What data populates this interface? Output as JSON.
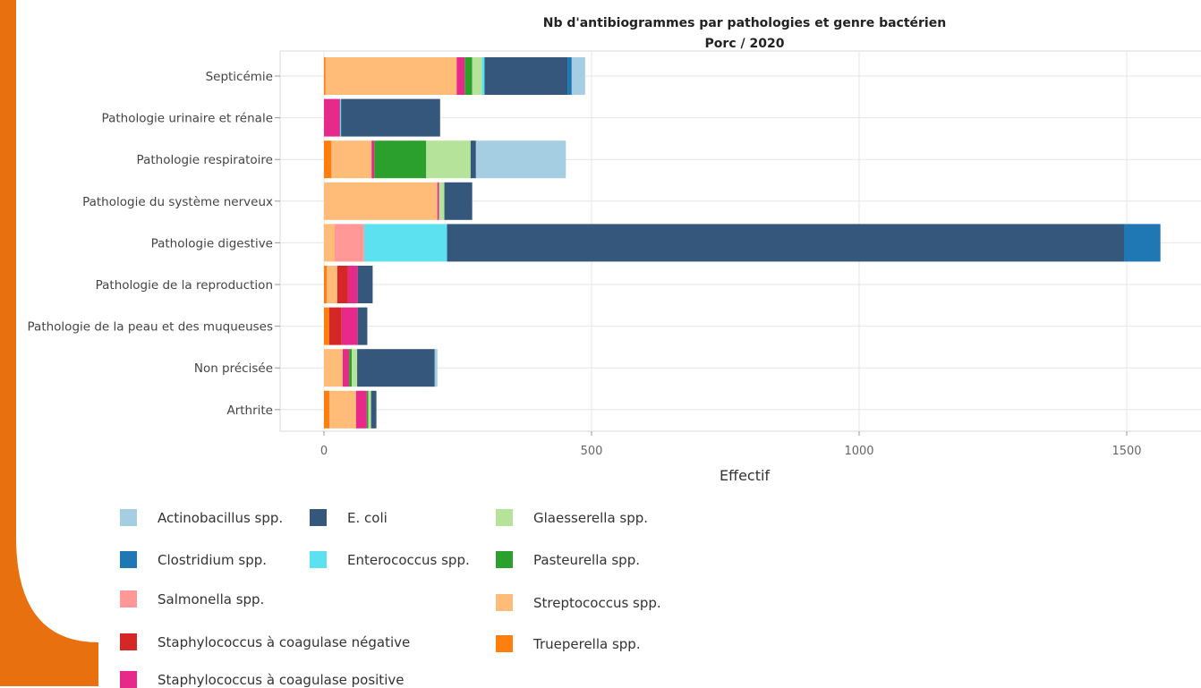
{
  "chart_data": {
    "type": "bar",
    "orientation": "horizontal",
    "stacked": true,
    "title": "Nb d'antibiogrammes par pathologies et genre bactérien",
    "subtitle": "Porc / 2020",
    "xlabel": "Effectif",
    "ylabel": "",
    "xlim": [
      -80,
      1640
    ],
    "xticks": [
      0,
      500,
      1000,
      1500
    ],
    "xtick_labels": [
      "0",
      "500",
      "1000",
      "1500"
    ],
    "grid": true,
    "legend_position": "bottom",
    "categories": [
      "Septicémie",
      "Pathologie urinaire et rénale",
      "Pathologie respiratoire",
      "Pathologie du système nerveux",
      "Pathologie digestive",
      "Pathologie de la reproduction",
      "Pathologie de la peau et des muqueuses",
      "Non précisée",
      "Arthrite"
    ],
    "series": [
      {
        "name": "Trueperella spp.",
        "color": "#ff7f0e",
        "values": [
          3,
          0,
          14,
          0,
          0,
          5,
          10,
          0,
          10
        ]
      },
      {
        "name": "Streptococcus spp.",
        "color": "#ffbb78",
        "values": [
          245,
          0,
          75,
          212,
          20,
          20,
          0,
          35,
          50
        ]
      },
      {
        "name": "Salmonella spp.",
        "color": "#ff9896",
        "values": [
          0,
          0,
          0,
          0,
          55,
          0,
          0,
          0,
          0
        ]
      },
      {
        "name": "Staphylococcus à coagulase négative",
        "color": "#d62728",
        "values": [
          0,
          0,
          0,
          0,
          0,
          20,
          23,
          0,
          0
        ]
      },
      {
        "name": "Staphylococcus à coagulase positive",
        "color": "#e7298a",
        "values": [
          15,
          30,
          5,
          3,
          0,
          18,
          30,
          12,
          20
        ]
      },
      {
        "name": "Pasteurella spp.",
        "color": "#2ca02c",
        "values": [
          14,
          0,
          97,
          0,
          0,
          0,
          0,
          5,
          3
        ]
      },
      {
        "name": "Glaesserella spp.",
        "color": "#b5e39a",
        "values": [
          18,
          0,
          83,
          10,
          0,
          0,
          0,
          10,
          5
        ]
      },
      {
        "name": "Enterococcus spp.",
        "color": "#5ce1f0",
        "values": [
          5,
          2,
          0,
          0,
          155,
          0,
          0,
          0,
          0
        ]
      },
      {
        "name": "E. coli",
        "color": "#35577b",
        "values": [
          155,
          185,
          10,
          52,
          1265,
          28,
          18,
          145,
          10
        ]
      },
      {
        "name": "Clostridium spp.",
        "color": "#1f77b4",
        "values": [
          8,
          0,
          0,
          0,
          68,
          0,
          0,
          0,
          0
        ]
      },
      {
        "name": "Actinobacillus spp.",
        "color": "#a6cee3",
        "values": [
          25,
          0,
          168,
          0,
          0,
          0,
          0,
          5,
          0
        ]
      }
    ]
  },
  "legend": {
    "items": [
      {
        "label": "Actinobacillus spp.",
        "color": "#a6cee3"
      },
      {
        "label": "Clostridium spp.",
        "color": "#1f77b4"
      },
      {
        "label": "Salmonella spp.",
        "color": "#ff9896"
      },
      {
        "label": "Staphylococcus à coagulase négative",
        "color": "#d62728"
      },
      {
        "label": "Staphylococcus à coagulase positive",
        "color": "#e7298a"
      },
      {
        "label": "E. coli",
        "color": "#35577b"
      },
      {
        "label": "Enterococcus spp.",
        "color": "#5ce1f0"
      },
      {
        "label": "Glaesserella spp.",
        "color": "#b5e39a"
      },
      {
        "label": "Pasteurella spp.",
        "color": "#2ca02c"
      },
      {
        "label": "Streptococcus spp.",
        "color": "#ffbb78"
      },
      {
        "label": "Trueperella spp.",
        "color": "#ff7f0e"
      }
    ]
  },
  "decor": {
    "accent_color": "#e8700e"
  }
}
